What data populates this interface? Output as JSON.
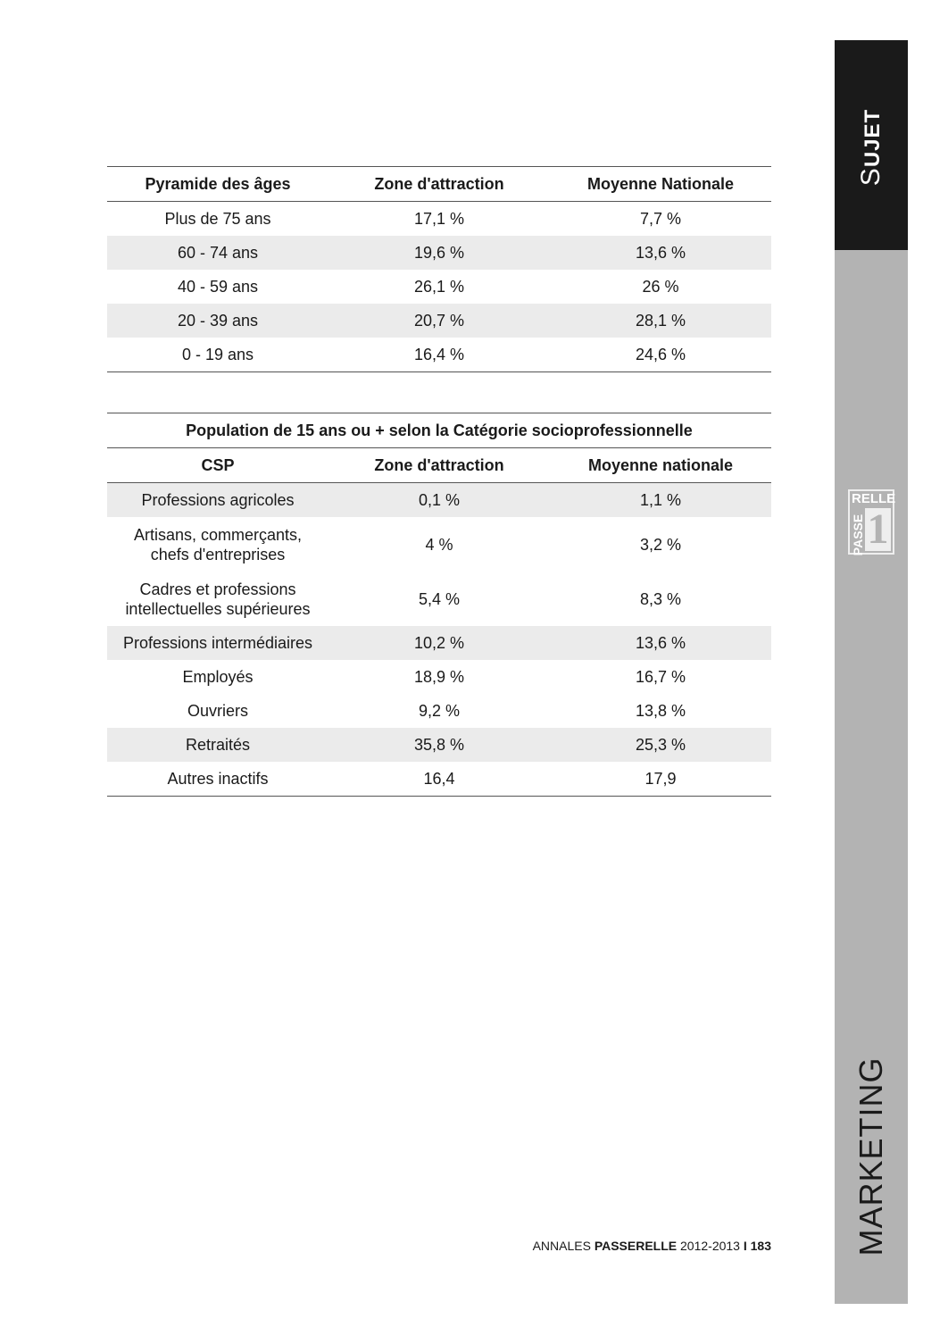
{
  "table1": {
    "headers": [
      "Pyramide des âges",
      "Zone d'attraction",
      "Moyenne Nationale"
    ],
    "rows": [
      [
        "Plus de 75 ans",
        "17,1 %",
        "7,7 %"
      ],
      [
        "60 - 74 ans",
        "19,6 %",
        "13,6 %"
      ],
      [
        "40 - 59 ans",
        "26,1 %",
        "26 %"
      ],
      [
        "20 - 39 ans",
        "20,7 %",
        "28,1 %"
      ],
      [
        "0 - 19 ans",
        "16,4 %",
        "24,6 %"
      ]
    ]
  },
  "table2": {
    "title": "Population de 15 ans ou + selon la Catégorie socioprofessionnelle",
    "headers": [
      "CSP",
      "Zone d'attraction",
      "Moyenne nationale"
    ],
    "rows": [
      [
        "Professions agricoles",
        "0,1 %",
        "1,1 %"
      ],
      [
        "Artisans, commerçants, chefs d'entreprises",
        "4 %",
        "3,2 %"
      ],
      [
        "Cadres et professions intellectuelles supérieures",
        "5,4 %",
        "8,3 %"
      ],
      [
        "Professions intermédiaires",
        "10,2 %",
        "13,6 %"
      ],
      [
        "Employés",
        "18,9 %",
        "16,7 %"
      ],
      [
        "Ouvriers",
        "9,2 %",
        "13,8 %"
      ],
      [
        "Retraités",
        "35,8 %",
        "25,3 %"
      ],
      [
        "Autres inactifs",
        "16,4",
        "17,9"
      ]
    ]
  },
  "sidebar": {
    "sujet_initial": "S",
    "sujet_rest": "UJET",
    "section": "MARKETING",
    "logo": {
      "top": "RELLE",
      "side": "PASSE",
      "number": "1"
    }
  },
  "footer": {
    "prefix": "ANNALES",
    "brand": "PASSERELLE",
    "years": "2012-2013",
    "separator": "I",
    "page": "183"
  }
}
